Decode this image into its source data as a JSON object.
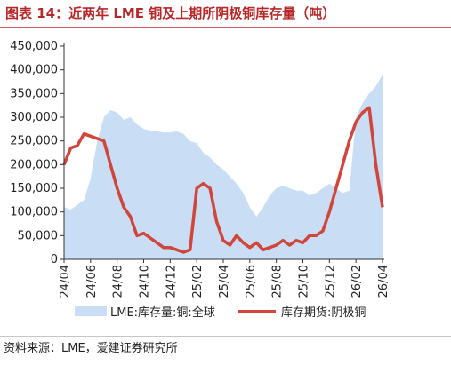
{
  "chart_data": {
    "type": "line",
    "title": "图表 14：近两年 LME 铜及上期所阴极铜库存量（吨）",
    "categories": [
      "24/04",
      null,
      null,
      null,
      "24/06",
      null,
      null,
      null,
      "24/08",
      null,
      null,
      null,
      "24/10",
      null,
      null,
      null,
      "24/12",
      null,
      null,
      null,
      "25/02",
      null,
      null,
      null,
      "25/04",
      null,
      null,
      null,
      "25/06",
      null,
      null,
      null,
      "25/08",
      null,
      null,
      null,
      "25/10",
      null,
      null,
      null,
      "25/12",
      null,
      null,
      null,
      "26/02",
      null,
      null,
      null,
      "26/04"
    ],
    "series": [
      {
        "name": "LME:库存量:铜:全球",
        "kind": "area",
        "color": "#c9def5",
        "values": [
          110000,
          105000,
          115000,
          125000,
          170000,
          250000,
          300000,
          315000,
          310000,
          295000,
          300000,
          285000,
          275000,
          272000,
          270000,
          268000,
          268000,
          270000,
          265000,
          250000,
          245000,
          225000,
          215000,
          200000,
          190000,
          175000,
          160000,
          140000,
          110000,
          90000,
          110000,
          135000,
          150000,
          155000,
          150000,
          145000,
          145000,
          135000,
          140000,
          150000,
          160000,
          150000,
          140000,
          145000,
          300000,
          330000,
          350000,
          365000,
          390000
        ]
      },
      {
        "name": "库存期货:阴极铜",
        "kind": "line",
        "color": "#d0453c",
        "values": [
          200000,
          235000,
          240000,
          265000,
          260000,
          255000,
          250000,
          200000,
          150000,
          110000,
          90000,
          50000,
          55000,
          45000,
          35000,
          25000,
          25000,
          20000,
          15000,
          20000,
          150000,
          160000,
          150000,
          80000,
          40000,
          30000,
          50000,
          35000,
          25000,
          35000,
          20000,
          25000,
          30000,
          40000,
          30000,
          40000,
          35000,
          50000,
          50000,
          60000,
          100000,
          150000,
          200000,
          250000,
          290000,
          310000,
          320000,
          200000,
          110000
        ]
      }
    ],
    "ylim": [
      0,
      450000
    ],
    "yticks": [
      0,
      {
        "value": 50000,
        "label": "50,000"
      },
      {
        "value": 100000,
        "label": "100,000"
      },
      {
        "value": 150000,
        "label": "150,000"
      },
      {
        "value": 200000,
        "label": "200,000"
      },
      {
        "value": 250000,
        "label": "250,000"
      },
      {
        "value": 300000,
        "label": "300,000"
      },
      {
        "value": 350000,
        "label": "350,000"
      },
      {
        "value": 400000,
        "label": "400,000"
      },
      {
        "value": 450000,
        "label": "450,000"
      }
    ],
    "grid": false
  },
  "source": "资料来源：LME，爱建证券研究所"
}
